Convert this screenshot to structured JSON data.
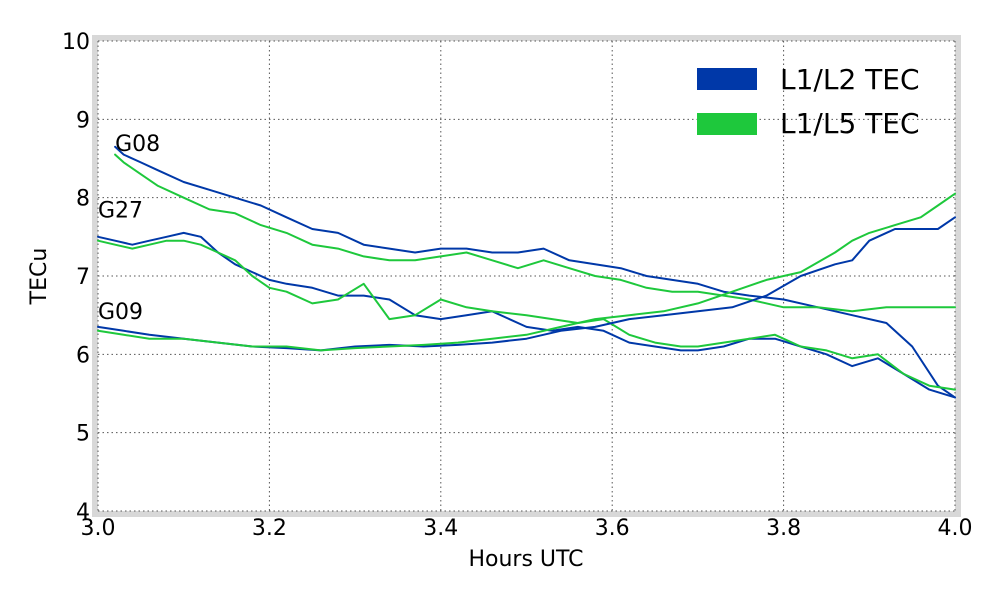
{
  "chart_data": {
    "type": "line",
    "xlabel": "Hours UTC",
    "ylabel": "TECu",
    "xlim": [
      3.0,
      4.0
    ],
    "ylim": [
      4,
      10
    ],
    "x_ticks": [
      "3.0",
      "3.2",
      "3.4",
      "3.6",
      "3.8",
      "4.0"
    ],
    "x_tick_values": [
      3.0,
      3.2,
      3.4,
      3.6,
      3.8,
      4.0
    ],
    "y_ticks": [
      "4",
      "5",
      "6",
      "7",
      "8",
      "9",
      "10"
    ],
    "y_tick_values": [
      4,
      5,
      6,
      7,
      8,
      9,
      10
    ],
    "grid": true,
    "legend_position": "top-right",
    "legend": [
      {
        "label": "L1/L2 TEC",
        "color": "#0038a8"
      },
      {
        "label": "L1/L5 TEC",
        "color": "#1ec83c"
      }
    ],
    "annotations": [
      {
        "text": "G08",
        "x": 3.02,
        "y": 8.65
      },
      {
        "text": "G27",
        "x": 3.0,
        "y": 7.8
      },
      {
        "text": "G09",
        "x": 3.0,
        "y": 6.5
      }
    ],
    "series": [
      {
        "group": "L1/L2 TEC",
        "satellite": "G08",
        "color": "#0038a8",
        "x": [
          3.02,
          3.03,
          3.05,
          3.07,
          3.1,
          3.13,
          3.16,
          3.19,
          3.22,
          3.25,
          3.28,
          3.31,
          3.34,
          3.37,
          3.4,
          3.43,
          3.46,
          3.49,
          3.52,
          3.55,
          3.58,
          3.61,
          3.64,
          3.67,
          3.7,
          3.73,
          3.76,
          3.8,
          3.84,
          3.88,
          3.92,
          3.95,
          3.98,
          4.0
        ],
        "y": [
          8.65,
          8.55,
          8.45,
          8.35,
          8.2,
          8.1,
          8.0,
          7.9,
          7.75,
          7.6,
          7.55,
          7.4,
          7.35,
          7.3,
          7.35,
          7.35,
          7.3,
          7.3,
          7.35,
          7.2,
          7.15,
          7.1,
          7.0,
          6.95,
          6.9,
          6.8,
          6.75,
          6.7,
          6.6,
          6.5,
          6.4,
          6.1,
          5.6,
          5.45
        ]
      },
      {
        "group": "L1/L5 TEC",
        "satellite": "G08",
        "color": "#1ec83c",
        "x": [
          3.02,
          3.03,
          3.05,
          3.07,
          3.1,
          3.13,
          3.16,
          3.19,
          3.22,
          3.25,
          3.28,
          3.31,
          3.34,
          3.37,
          3.4,
          3.43,
          3.46,
          3.49,
          3.52,
          3.55,
          3.58,
          3.61,
          3.64,
          3.67,
          3.7,
          3.73,
          3.76,
          3.8,
          3.84,
          3.88,
          3.92,
          3.95,
          3.98,
          4.0
        ],
        "y": [
          8.55,
          8.45,
          8.3,
          8.15,
          8.0,
          7.85,
          7.8,
          7.65,
          7.55,
          7.4,
          7.35,
          7.25,
          7.2,
          7.2,
          7.25,
          7.3,
          7.2,
          7.1,
          7.2,
          7.1,
          7.0,
          6.95,
          6.85,
          6.8,
          6.8,
          6.75,
          6.7,
          6.6,
          6.6,
          6.55,
          6.6,
          6.6,
          6.6,
          6.6
        ]
      },
      {
        "group": "L1/L2 TEC",
        "satellite": "G27",
        "color": "#0038a8",
        "x": [
          3.0,
          3.02,
          3.04,
          3.06,
          3.08,
          3.1,
          3.12,
          3.14,
          3.16,
          3.18,
          3.2,
          3.22,
          3.25,
          3.28,
          3.31,
          3.34,
          3.37,
          3.4,
          3.43,
          3.46,
          3.5,
          3.53,
          3.56,
          3.59,
          3.62,
          3.65,
          3.68,
          3.7,
          3.73,
          3.76,
          3.79,
          3.82,
          3.85,
          3.88,
          3.91,
          3.94,
          3.97,
          4.0
        ],
        "y": [
          7.5,
          7.45,
          7.4,
          7.45,
          7.5,
          7.55,
          7.5,
          7.3,
          7.15,
          7.05,
          6.95,
          6.9,
          6.85,
          6.75,
          6.75,
          6.7,
          6.5,
          6.45,
          6.5,
          6.55,
          6.35,
          6.3,
          6.35,
          6.3,
          6.15,
          6.1,
          6.05,
          6.05,
          6.1,
          6.2,
          6.2,
          6.1,
          6.0,
          5.85,
          5.95,
          5.75,
          5.55,
          5.45
        ]
      },
      {
        "group": "L1/L5 TEC",
        "satellite": "G27",
        "color": "#1ec83c",
        "x": [
          3.0,
          3.02,
          3.04,
          3.06,
          3.08,
          3.1,
          3.12,
          3.14,
          3.16,
          3.18,
          3.2,
          3.22,
          3.25,
          3.28,
          3.31,
          3.34,
          3.37,
          3.4,
          3.43,
          3.46,
          3.5,
          3.53,
          3.56,
          3.59,
          3.62,
          3.65,
          3.68,
          3.7,
          3.73,
          3.76,
          3.79,
          3.82,
          3.85,
          3.88,
          3.91,
          3.94,
          3.97,
          4.0
        ],
        "y": [
          7.45,
          7.4,
          7.35,
          7.4,
          7.45,
          7.45,
          7.4,
          7.3,
          7.2,
          7.0,
          6.85,
          6.8,
          6.65,
          6.7,
          6.9,
          6.45,
          6.5,
          6.7,
          6.6,
          6.55,
          6.5,
          6.45,
          6.4,
          6.45,
          6.25,
          6.15,
          6.1,
          6.1,
          6.15,
          6.2,
          6.25,
          6.1,
          6.05,
          5.95,
          6.0,
          5.75,
          5.6,
          5.55
        ]
      },
      {
        "group": "L1/L2 TEC",
        "satellite": "G09",
        "color": "#0038a8",
        "x": [
          3.0,
          3.03,
          3.06,
          3.1,
          3.14,
          3.18,
          3.22,
          3.26,
          3.3,
          3.34,
          3.38,
          3.42,
          3.46,
          3.5,
          3.54,
          3.58,
          3.62,
          3.66,
          3.7,
          3.74,
          3.78,
          3.82,
          3.86,
          3.88,
          3.9,
          3.93,
          3.96,
          3.98,
          4.0
        ],
        "y": [
          6.35,
          6.3,
          6.25,
          6.2,
          6.15,
          6.1,
          6.08,
          6.05,
          6.1,
          6.12,
          6.1,
          6.12,
          6.15,
          6.2,
          6.3,
          6.35,
          6.45,
          6.5,
          6.55,
          6.6,
          6.75,
          7.0,
          7.15,
          7.2,
          7.45,
          7.6,
          7.6,
          7.6,
          7.75
        ]
      },
      {
        "group": "L1/L5 TEC",
        "satellite": "G09",
        "color": "#1ec83c",
        "x": [
          3.0,
          3.03,
          3.06,
          3.1,
          3.14,
          3.18,
          3.22,
          3.26,
          3.3,
          3.34,
          3.38,
          3.42,
          3.46,
          3.5,
          3.54,
          3.58,
          3.62,
          3.66,
          3.7,
          3.74,
          3.78,
          3.82,
          3.86,
          3.88,
          3.9,
          3.93,
          3.96,
          3.98,
          4.0
        ],
        "y": [
          6.3,
          6.25,
          6.2,
          6.2,
          6.15,
          6.1,
          6.1,
          6.05,
          6.08,
          6.1,
          6.12,
          6.15,
          6.2,
          6.25,
          6.35,
          6.45,
          6.5,
          6.55,
          6.65,
          6.8,
          6.95,
          7.05,
          7.3,
          7.45,
          7.55,
          7.65,
          7.75,
          7.9,
          8.05
        ]
      }
    ]
  }
}
